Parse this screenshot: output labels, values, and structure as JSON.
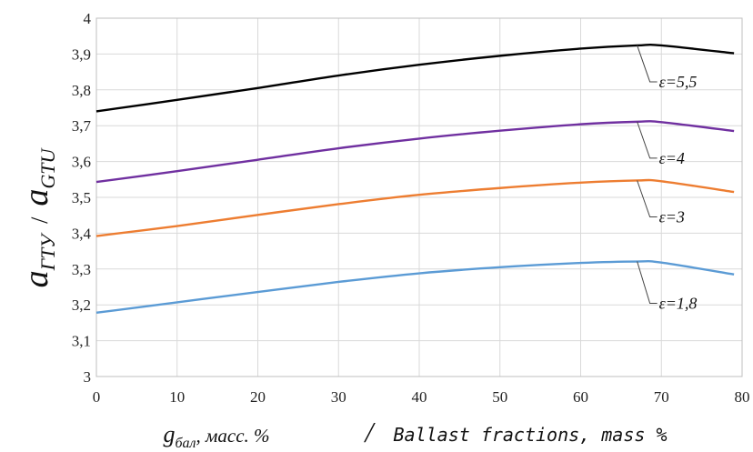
{
  "chart_data": {
    "type": "line",
    "title": "",
    "xlim": [
      0,
      80
    ],
    "ylim": [
      3,
      4
    ],
    "x_ticks": [
      "0",
      "10",
      "20",
      "30",
      "40",
      "50",
      "60",
      "70",
      "80"
    ],
    "y_ticks": [
      "3",
      "3,1",
      "3,2",
      "3,3",
      "3,4",
      "3,5",
      "3,6",
      "3,7",
      "3,8",
      "3,9",
      "4"
    ],
    "grid": true,
    "xlabel": {
      "main": "g",
      "sub": "бал",
      "rest": ", масс. %",
      "separator": "/",
      "english": "Ballast fractions, mass %"
    },
    "ylabel": {
      "main1": "a",
      "sub1": "ГТУ",
      "separator": "/",
      "main2": "a",
      "sub2": "GTU"
    },
    "series": [
      {
        "name": "ε=5,5",
        "color": "#000000",
        "x": [
          0,
          10,
          20,
          30,
          40,
          50,
          60,
          67,
          70,
          79
        ],
        "y": [
          3.74,
          3.772,
          3.805,
          3.84,
          3.87,
          3.895,
          3.915,
          3.924,
          3.924,
          3.902
        ]
      },
      {
        "name": "ε=4",
        "color": "#7030a0",
        "x": [
          0,
          10,
          20,
          30,
          40,
          50,
          60,
          67,
          70,
          79
        ],
        "y": [
          3.543,
          3.573,
          3.605,
          3.637,
          3.664,
          3.686,
          3.704,
          3.711,
          3.71,
          3.685
        ]
      },
      {
        "name": "ε=3",
        "color": "#ed7d31",
        "x": [
          0,
          10,
          20,
          30,
          40,
          50,
          60,
          67,
          70,
          79
        ],
        "y": [
          3.392,
          3.42,
          3.451,
          3.481,
          3.507,
          3.526,
          3.541,
          3.547,
          3.545,
          3.515
        ]
      },
      {
        "name": "ε=1,8",
        "color": "#5b9bd5",
        "x": [
          0,
          10,
          20,
          30,
          40,
          50,
          60,
          67,
          70,
          79
        ],
        "y": [
          3.178,
          3.207,
          3.236,
          3.264,
          3.288,
          3.305,
          3.317,
          3.321,
          3.318,
          3.285
        ]
      }
    ]
  }
}
